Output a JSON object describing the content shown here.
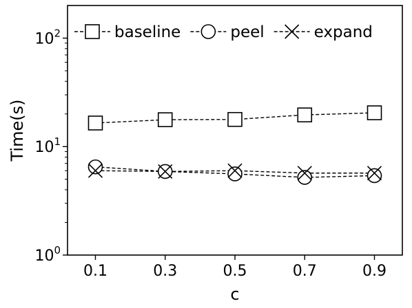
{
  "chart_data": {
    "type": "line",
    "title": "",
    "xlabel": "c",
    "ylabel": "Time(s)",
    "yscale": "log",
    "ylim": [
      1,
      200
    ],
    "xlim": [
      0.02,
      0.98
    ],
    "x": [
      0.1,
      0.3,
      0.5,
      0.7,
      0.9
    ],
    "x_tick_labels": [
      "0.1",
      "0.3",
      "0.5",
      "0.7",
      "0.9"
    ],
    "y_ticks": [
      {
        "value": 1,
        "base": "10",
        "exp": "0"
      },
      {
        "value": 10,
        "base": "10",
        "exp": "1"
      },
      {
        "value": 100,
        "base": "10",
        "exp": "2"
      }
    ],
    "grid": false,
    "legend_position": "top",
    "series": [
      {
        "name": "baseline",
        "marker": "square",
        "line_style": "dashed",
        "color": "#000000",
        "values": [
          16.5,
          17.7,
          17.8,
          19.6,
          20.5
        ]
      },
      {
        "name": "peel",
        "marker": "circle",
        "line_style": "dashed",
        "color": "#000000",
        "values": [
          6.5,
          5.9,
          5.6,
          5.2,
          5.4
        ]
      },
      {
        "name": "expand",
        "marker": "x",
        "line_style": "dashed",
        "color": "#000000",
        "values": [
          6.0,
          5.9,
          6.0,
          5.7,
          5.7
        ]
      }
    ]
  }
}
